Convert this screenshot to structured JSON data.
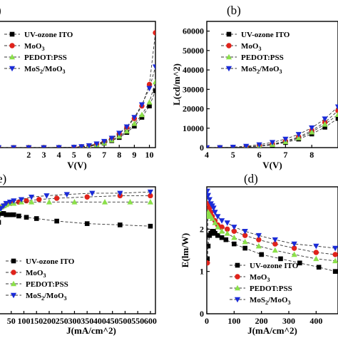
{
  "chart_data": [
    {
      "id": "a",
      "type": "line",
      "panel_label": ")",
      "xlabel": "V(V)",
      "ylabel": "",
      "xlim": [
        0,
        10.4
      ],
      "ylim": [
        0,
        100
      ],
      "xticks": [
        2,
        3,
        4,
        5,
        6,
        7,
        8,
        9,
        10
      ],
      "yticks": [],
      "legend": "top-left",
      "x": [
        0,
        1,
        2,
        3,
        4,
        5,
        5.5,
        6,
        6.5,
        7,
        7.5,
        8,
        8.5,
        9,
        9.5,
        10,
        10.4
      ],
      "series": [
        {
          "name": "UV-ozone ITO",
          "base": "UV-ozone ITO",
          "sub": "",
          "color": "#000000",
          "marker": "square",
          "values": [
            0,
            0,
            0,
            0,
            0.1,
            0.2,
            0.5,
            1,
            2,
            3.5,
            5.5,
            8,
            12,
            17,
            24,
            33,
            45
          ]
        },
        {
          "name": "MoO3",
          "base": "MoO",
          "sub": "3",
          "color": "#e0231b",
          "marker": "circle",
          "values": [
            0,
            0,
            0,
            0,
            0.1,
            0.3,
            0.7,
            1.4,
            2.6,
            4.5,
            7,
            11,
            16,
            23,
            33,
            50,
            91
          ]
        },
        {
          "name": "PEDOT:PSS",
          "base": "PEDOT:PSS",
          "sub": "",
          "color": "#8be04a",
          "marker": "triangle-up",
          "values": [
            0,
            0,
            0,
            0,
            0.1,
            0.2,
            0.6,
            1.2,
            2.2,
            3.8,
            6,
            9,
            13,
            19,
            26,
            36,
            52
          ]
        },
        {
          "name": "MoS2/MoO3",
          "base": "MoS",
          "sub": "2",
          "base2": "/MoO",
          "sub2": "3",
          "color": "#1a2bd8",
          "marker": "triangle-down",
          "values": [
            0,
            0,
            0,
            0,
            0.1,
            0.3,
            0.8,
            1.6,
            3,
            5,
            7.5,
            11.5,
            16.5,
            24,
            34,
            47,
            64
          ]
        }
      ]
    },
    {
      "id": "b",
      "type": "line",
      "panel_label": "(b)",
      "xlabel": "V(V)",
      "ylabel": "L(cd/m^2)",
      "xlim": [
        4,
        9
      ],
      "ylim": [
        0,
        65000
      ],
      "xticks": [
        4,
        5,
        6,
        7,
        8
      ],
      "yticks": [
        0,
        10000,
        20000,
        30000,
        40000,
        50000,
        60000
      ],
      "legend": "top-left",
      "x": [
        4,
        4.5,
        5,
        5.5,
        6,
        6.5,
        7,
        7.5,
        8,
        8.5,
        9
      ],
      "series": [
        {
          "name": "UV-ozone ITO",
          "base": "UV-ozone ITO",
          "sub": "",
          "color": "#000000",
          "marker": "square",
          "values": [
            0,
            20,
            80,
            300,
            700,
            1400,
            2600,
            4400,
            7000,
            10500,
            15000
          ]
        },
        {
          "name": "MoO3",
          "base": "MoO",
          "sub": "3",
          "color": "#e0231b",
          "marker": "circle",
          "values": [
            0,
            30,
            120,
            400,
            900,
            1800,
            3300,
            5500,
            8800,
            13000,
            19000
          ]
        },
        {
          "name": "PEDOT:PSS",
          "base": "PEDOT:PSS",
          "sub": "",
          "color": "#8be04a",
          "marker": "triangle-up",
          "values": [
            0,
            25,
            100,
            350,
            800,
            1600,
            3000,
            5000,
            8000,
            12000,
            17000
          ]
        },
        {
          "name": "MoS2/MoO3",
          "base": "MoS",
          "sub": "2",
          "base2": "/MoO",
          "sub2": "3",
          "color": "#1a2bd8",
          "marker": "triangle-down",
          "values": [
            0,
            50,
            250,
            700,
            1500,
            2700,
            4400,
            6800,
            10200,
            14800,
            21000
          ]
        }
      ]
    },
    {
      "id": "c",
      "type": "line",
      "panel_label": "e)",
      "xlabel": "J(mA/cm^2)",
      "ylabel": "",
      "xlim": [
        0,
        620
      ],
      "ylim": [
        0,
        10
      ],
      "xticks": [
        50,
        100,
        150,
        200,
        250,
        300,
        350,
        400,
        450,
        500,
        550,
        600
      ],
      "yticks": [],
      "legend": "bottom-left",
      "series": [
        {
          "name": "UV-ozone ITO",
          "base": "UV-ozone ITO",
          "sub": "",
          "color": "#000000",
          "marker": "square",
          "x": [
            0,
            10,
            20,
            30,
            45,
            60,
            80,
            110,
            150,
            230,
            350,
            480,
            600
          ],
          "values": [
            7.2,
            7.9,
            7.9,
            7.8,
            7.8,
            7.8,
            7.7,
            7.6,
            7.5,
            7.3,
            7.1,
            7.0,
            6.9
          ]
        },
        {
          "name": "MoO3",
          "base": "MoO",
          "sub": "3",
          "color": "#e0231b",
          "marker": "circle",
          "x": [
            0,
            10,
            20,
            30,
            40,
            50,
            80,
            110,
            160,
            230,
            350,
            480,
            600
          ],
          "values": [
            8.3,
            8.4,
            8.5,
            8.6,
            8.7,
            8.7,
            8.8,
            8.9,
            9.0,
            9.1,
            9.2,
            9.3,
            9.3
          ]
        },
        {
          "name": "PEDOT:PSS",
          "base": "PEDOT:PSS",
          "sub": "",
          "color": "#8be04a",
          "marker": "triangle-up",
          "x": [
            0,
            10,
            20,
            30,
            45,
            60,
            90,
            130,
            200,
            300,
            420,
            520,
            600
          ],
          "values": [
            8.2,
            8.4,
            8.5,
            8.6,
            8.7,
            8.7,
            8.8,
            8.8,
            8.8,
            8.8,
            8.8,
            8.8,
            8.8
          ]
        },
        {
          "name": "MoS2/MoO3",
          "base": "MoS",
          "sub": "2",
          "base2": "/MoO",
          "sub2": "3",
          "color": "#1a2bd8",
          "marker": "triangle-down",
          "x": [
            0,
            10,
            20,
            30,
            45,
            60,
            90,
            130,
            190,
            270,
            370,
            480,
            600
          ],
          "values": [
            8.1,
            8.3,
            8.5,
            8.7,
            8.8,
            8.9,
            9.0,
            9.2,
            9.3,
            9.4,
            9.5,
            9.5,
            9.6
          ]
        }
      ]
    },
    {
      "id": "d",
      "type": "line",
      "panel_label": "(d)",
      "xlabel": "J(mA/cm^2)",
      "ylabel": "E(lm/W)",
      "xlim": [
        0,
        480
      ],
      "ylim": [
        0,
        3
      ],
      "xticks": [
        0,
        100,
        200,
        300,
        400
      ],
      "yticks": [
        0,
        1,
        2
      ],
      "legend": "bottom-right",
      "series": [
        {
          "name": "UV-ozone ITO",
          "base": "UV-ozone ITO",
          "sub": "",
          "color": "#000000",
          "marker": "square",
          "x": [
            2,
            5,
            10,
            15,
            20,
            25,
            30,
            40,
            55,
            70,
            100,
            140,
            200,
            270,
            340,
            410,
            470
          ],
          "values": [
            1.3,
            1.6,
            1.85,
            1.9,
            1.95,
            1.95,
            1.9,
            1.85,
            1.8,
            1.75,
            1.65,
            1.55,
            1.4,
            1.3,
            1.2,
            1.1,
            1.0
          ]
        },
        {
          "name": "MoO3",
          "base": "MoO",
          "sub": "3",
          "color": "#e0231b",
          "marker": "circle",
          "x": [
            2,
            5,
            10,
            15,
            20,
            30,
            40,
            55,
            75,
            100,
            140,
            190,
            250,
            320,
            400,
            470
          ],
          "values": [
            1.2,
            2.6,
            2.5,
            2.4,
            2.3,
            2.2,
            2.1,
            2.05,
            2.0,
            1.95,
            1.85,
            1.75,
            1.65,
            1.55,
            1.45,
            1.4
          ]
        },
        {
          "name": "PEDOT:PSS",
          "base": "PEDOT:PSS",
          "sub": "",
          "color": "#8be04a",
          "marker": "triangle-up",
          "x": [
            2,
            5,
            10,
            15,
            20,
            30,
            40,
            55,
            75,
            100,
            140,
            190,
            250,
            320,
            400,
            470
          ],
          "values": [
            2.3,
            2.4,
            2.35,
            2.3,
            2.25,
            2.15,
            2.05,
            1.95,
            1.9,
            1.8,
            1.7,
            1.6,
            1.5,
            1.4,
            1.3,
            1.25
          ]
        },
        {
          "name": "MoS2/MoO3",
          "base": "MoS",
          "sub": "2",
          "base2": "/MoO",
          "sub2": "3",
          "color": "#1a2bd8",
          "marker": "triangle-down",
          "x": [
            2,
            5,
            10,
            15,
            20,
            25,
            30,
            40,
            55,
            75,
            100,
            140,
            190,
            250,
            320,
            400,
            470
          ],
          "values": [
            2.9,
            2.8,
            2.7,
            2.6,
            2.55,
            2.5,
            2.4,
            2.3,
            2.2,
            2.15,
            2.05,
            1.95,
            1.85,
            1.75,
            1.65,
            1.6,
            1.55
          ]
        }
      ]
    }
  ]
}
